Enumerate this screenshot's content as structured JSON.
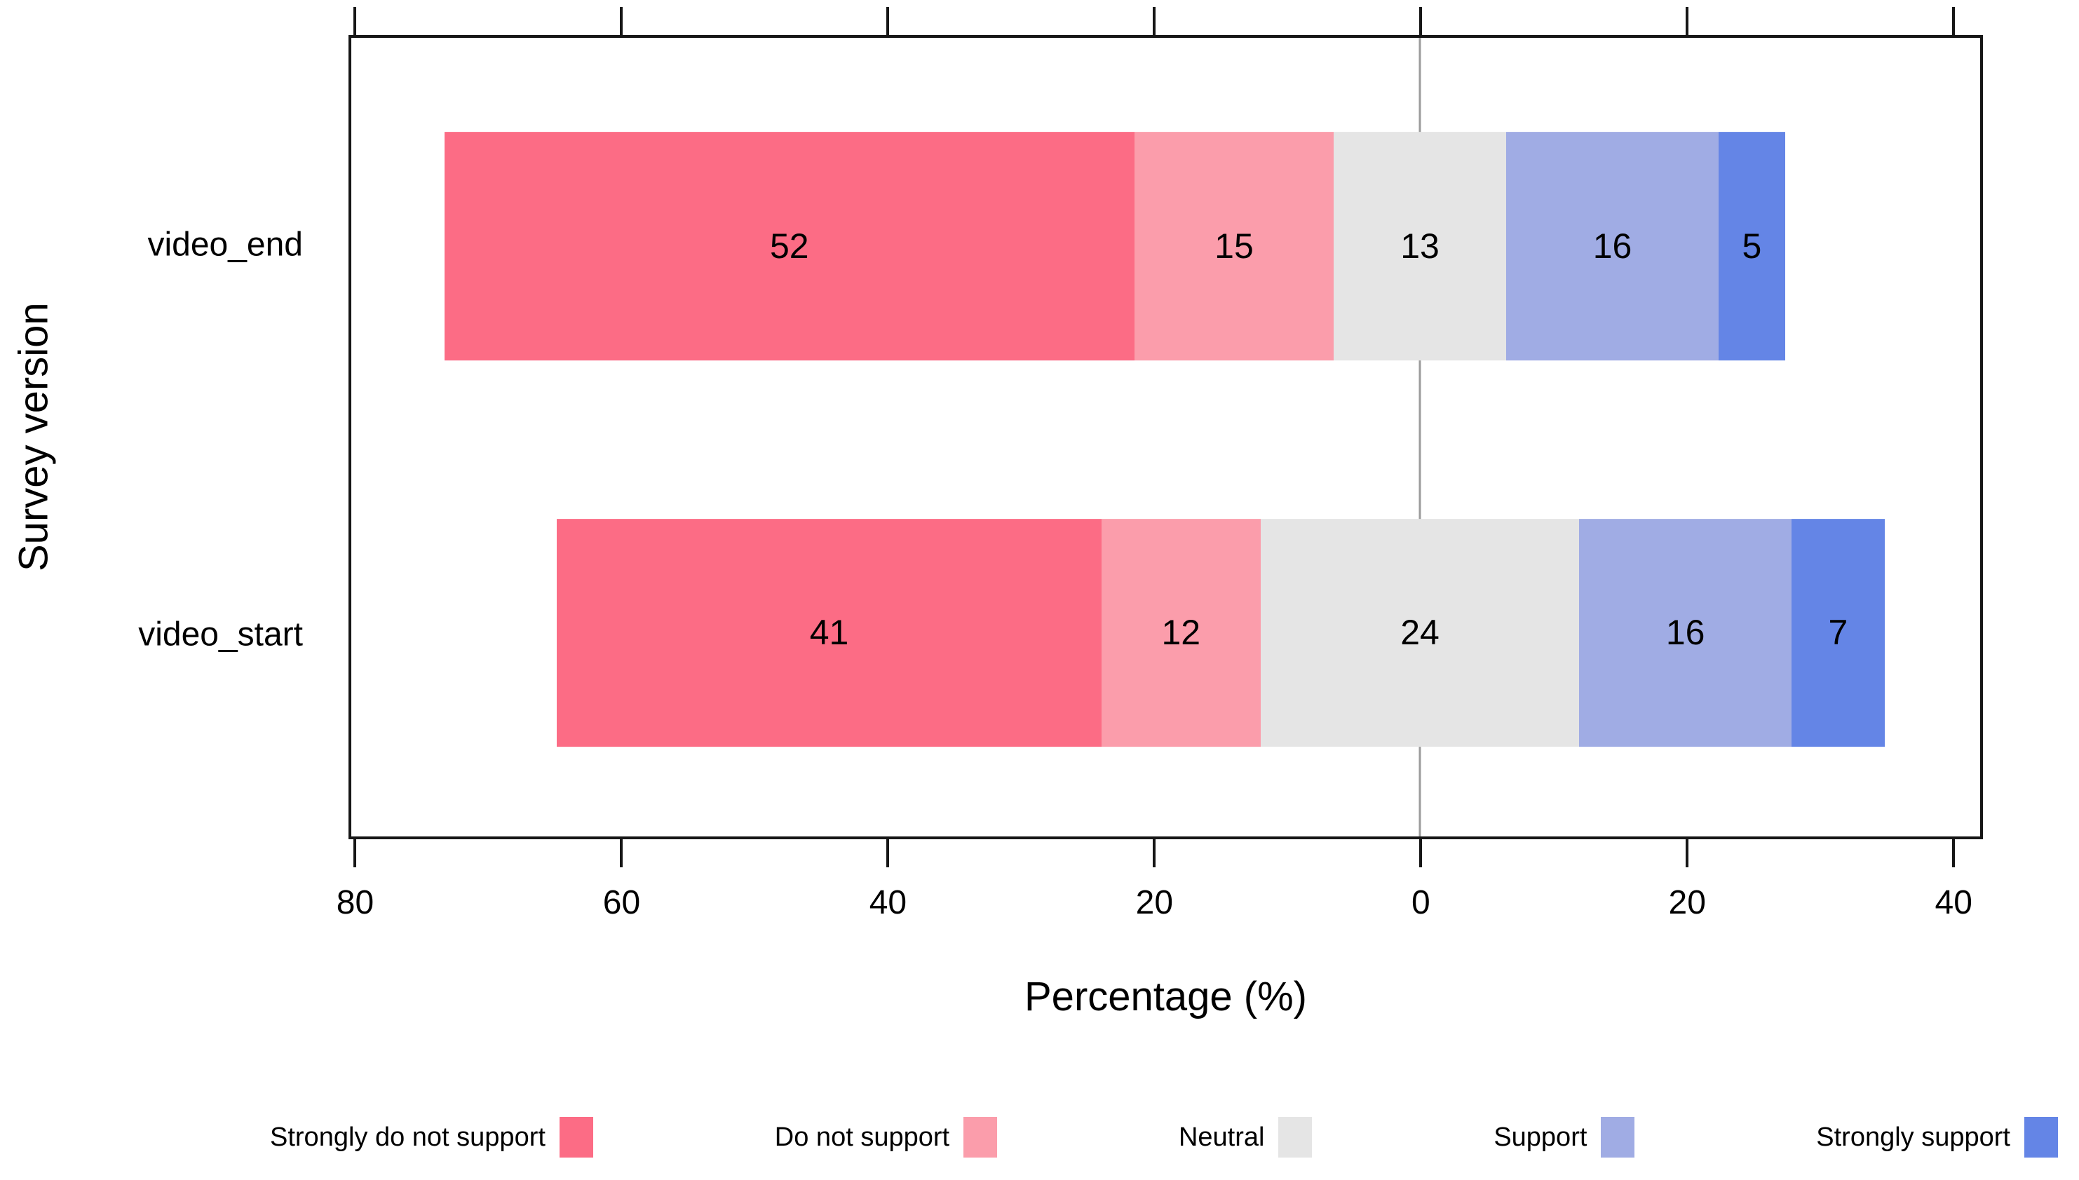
{
  "chart_data": {
    "type": "bar",
    "variant": "diverging-stacked-horizontal-likert",
    "title": "",
    "xlabel": "Percentage (%)",
    "ylabel": "Survey version",
    "categories": [
      "video_end",
      "video_start"
    ],
    "series": [
      {
        "name": "Strongly do not support",
        "color": "#FC6C85",
        "values": [
          52,
          41
        ]
      },
      {
        "name": "Do not support",
        "color": "#FB9DAB",
        "values": [
          15,
          12
        ]
      },
      {
        "name": "Neutral",
        "color": "#E5E5E5",
        "values": [
          13,
          24
        ]
      },
      {
        "name": "Support",
        "color": "#A0ACE4",
        "values": [
          16,
          16
        ]
      },
      {
        "name": "Strongly support",
        "color": "#6485E6",
        "values": [
          5,
          7
        ]
      }
    ],
    "neutral_centered_on_zero": true,
    "x_ticks": [
      {
        "value": -80,
        "label": "80"
      },
      {
        "value": -60,
        "label": "60"
      },
      {
        "value": -40,
        "label": "40"
      },
      {
        "value": -20,
        "label": "20"
      },
      {
        "value": 0,
        "label": "0"
      },
      {
        "value": 20,
        "label": "20"
      },
      {
        "value": 40,
        "label": "40"
      }
    ],
    "x_range": [
      -80.5,
      42.2
    ],
    "grid": "off",
    "zero_line_color": "#9b9b9b",
    "axis_color": "#161616",
    "legend_position": "bottom"
  }
}
